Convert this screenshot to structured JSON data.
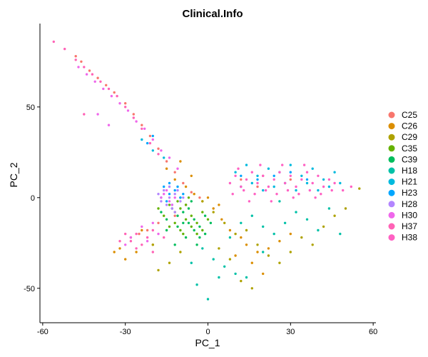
{
  "chart_data": {
    "type": "scatter",
    "title": "Clinical.Info",
    "xlabel": "PC_1",
    "ylabel": "PC_2",
    "xlim": [
      -61,
      61
    ],
    "ylim": [
      -69,
      96
    ],
    "xticks": [
      -60,
      -30,
      0,
      30,
      60
    ],
    "yticks": [
      -50,
      0,
      50
    ],
    "grid": false,
    "legend_position": "right",
    "series": [
      {
        "name": "C25",
        "color": "#F8766D",
        "points": [
          [
            -48,
            78
          ],
          [
            -46,
            75
          ],
          [
            -43,
            70
          ],
          [
            -40,
            66
          ],
          [
            -37,
            62
          ],
          [
            -34,
            58
          ],
          [
            -30,
            52
          ],
          [
            -27,
            46
          ],
          [
            -24,
            40
          ],
          [
            -21,
            34
          ],
          [
            -18,
            27
          ],
          [
            -15,
            20
          ],
          [
            -12,
            14
          ],
          [
            -9,
            8
          ],
          [
            -6,
            3
          ],
          [
            -3,
            0
          ],
          [
            -25,
            -20
          ],
          [
            -22,
            -18
          ],
          [
            -18,
            -14
          ],
          [
            -12,
            -10
          ],
          [
            -8,
            -4
          ],
          [
            12,
            10
          ],
          [
            20,
            12
          ],
          [
            30,
            10
          ],
          [
            18,
            6
          ]
        ]
      },
      {
        "name": "C26",
        "color": "#DB8E00",
        "points": [
          [
            -32,
            -28
          ],
          [
            -28,
            -22
          ],
          [
            -24,
            -18
          ],
          [
            -20,
            -26
          ],
          [
            -34,
            -30
          ],
          [
            -30,
            -34
          ],
          [
            -26,
            -30
          ],
          [
            -15,
            16
          ],
          [
            -12,
            10
          ],
          [
            -8,
            6
          ],
          [
            -5,
            2
          ],
          [
            -2,
            -2
          ],
          [
            2,
            -6
          ],
          [
            5,
            -12
          ],
          [
            8,
            -18
          ],
          [
            12,
            -22
          ],
          [
            14,
            -26
          ],
          [
            18,
            -30
          ],
          [
            22,
            -28
          ],
          [
            26,
            -24
          ],
          [
            30,
            -20
          ],
          [
            -10,
            20
          ],
          [
            -6,
            12
          ],
          [
            0,
            0
          ],
          [
            4,
            -4
          ],
          [
            16,
            -36
          ],
          [
            20,
            -42
          ],
          [
            10,
            -32
          ]
        ]
      },
      {
        "name": "C29",
        "color": "#AEA200",
        "points": [
          [
            -2,
            -2
          ],
          [
            2,
            -8
          ],
          [
            6,
            -14
          ],
          [
            10,
            -20
          ],
          [
            14,
            -18
          ],
          [
            18,
            -26
          ],
          [
            22,
            -32
          ],
          [
            26,
            -36
          ],
          [
            30,
            -30
          ],
          [
            34,
            -22
          ],
          [
            38,
            -26
          ],
          [
            42,
            -16
          ],
          [
            46,
            -10
          ],
          [
            50,
            -6
          ],
          [
            55,
            5
          ],
          [
            12,
            -46
          ],
          [
            16,
            -50
          ],
          [
            8,
            -34
          ],
          [
            -10,
            -30
          ],
          [
            -14,
            -36
          ],
          [
            -18,
            -40
          ],
          [
            -20,
            -26
          ],
          [
            4,
            -28
          ]
        ]
      },
      {
        "name": "C35",
        "color": "#64B200",
        "points": [
          [
            -14,
            -4
          ],
          [
            -12,
            -8
          ],
          [
            -10,
            -6
          ],
          [
            -8,
            -12
          ],
          [
            -6,
            -10
          ],
          [
            -4,
            -14
          ],
          [
            -2,
            -8
          ],
          [
            -16,
            -10
          ],
          [
            -12,
            -14
          ],
          [
            -10,
            -18
          ],
          [
            -8,
            -4
          ],
          [
            -6,
            -16
          ],
          [
            -4,
            -20
          ],
          [
            -14,
            -16
          ],
          [
            -18,
            -6
          ],
          [
            -2,
            -18
          ],
          [
            0,
            -12
          ],
          [
            -11,
            -2
          ],
          [
            -7,
            0
          ],
          [
            -9,
            -20
          ]
        ]
      },
      {
        "name": "C39",
        "color": "#00BD5C",
        "points": [
          [
            -13,
            -6
          ],
          [
            -11,
            -10
          ],
          [
            -9,
            -8
          ],
          [
            -7,
            -14
          ],
          [
            -5,
            -12
          ],
          [
            -3,
            -16
          ],
          [
            -1,
            -10
          ],
          [
            -15,
            -12
          ],
          [
            -11,
            -16
          ],
          [
            -9,
            -14
          ],
          [
            -7,
            -6
          ],
          [
            -5,
            -18
          ],
          [
            -3,
            -22
          ],
          [
            -15,
            -18
          ],
          [
            -17,
            -8
          ],
          [
            -1,
            -20
          ],
          [
            1,
            -14
          ],
          [
            -10,
            0
          ],
          [
            -6,
            -2
          ],
          [
            -8,
            -22
          ],
          [
            -4,
            -26
          ],
          [
            -12,
            -26
          ]
        ]
      },
      {
        "name": "H18",
        "color": "#00C1A7",
        "points": [
          [
            -2,
            -28
          ],
          [
            2,
            -34
          ],
          [
            6,
            -38
          ],
          [
            10,
            -42
          ],
          [
            14,
            -44
          ],
          [
            8,
            -22
          ],
          [
            12,
            -14
          ],
          [
            16,
            -10
          ],
          [
            20,
            -16
          ],
          [
            24,
            -20
          ],
          [
            28,
            -14
          ],
          [
            32,
            -8
          ],
          [
            36,
            -12
          ],
          [
            40,
            -18
          ],
          [
            44,
            -6
          ],
          [
            48,
            -20
          ],
          [
            4,
            -44
          ],
          [
            -6,
            -36
          ],
          [
            -4,
            -48
          ],
          [
            0,
            -56
          ],
          [
            20,
            -30
          ],
          [
            26,
            -2
          ]
        ]
      },
      {
        "name": "H21",
        "color": "#00BADE",
        "points": [
          [
            10,
            14
          ],
          [
            14,
            18
          ],
          [
            18,
            12
          ],
          [
            22,
            16
          ],
          [
            26,
            14
          ],
          [
            30,
            18
          ],
          [
            34,
            12
          ],
          [
            38,
            16
          ],
          [
            42,
            10
          ],
          [
            46,
            14
          ],
          [
            12,
            6
          ],
          [
            16,
            8
          ],
          [
            20,
            4
          ],
          [
            24,
            6
          ],
          [
            28,
            8
          ],
          [
            32,
            4
          ],
          [
            36,
            8
          ],
          [
            40,
            4
          ],
          [
            44,
            6
          ],
          [
            48,
            8
          ],
          [
            -20,
            26
          ],
          [
            -16,
            22
          ],
          [
            -24,
            32
          ]
        ]
      },
      {
        "name": "H23",
        "color": "#00A6FF",
        "points": [
          [
            -16,
            6
          ],
          [
            -14,
            2
          ],
          [
            -12,
            4
          ],
          [
            -10,
            0
          ],
          [
            -15,
            -2
          ],
          [
            -13,
            -4
          ],
          [
            -11,
            6
          ],
          [
            -17,
            0
          ],
          [
            -9,
            2
          ],
          [
            -14,
            8
          ],
          [
            12,
            12
          ],
          [
            18,
            10
          ],
          [
            24,
            12
          ],
          [
            30,
            14
          ],
          [
            36,
            10
          ],
          [
            -22,
            30
          ],
          [
            -20,
            34
          ]
        ]
      },
      {
        "name": "H28",
        "color": "#B385FF",
        "points": [
          [
            -16,
            4
          ],
          [
            -14,
            0
          ],
          [
            -12,
            2
          ],
          [
            -10,
            -2
          ],
          [
            -15,
            -4
          ],
          [
            -13,
            -6
          ],
          [
            -11,
            4
          ],
          [
            -17,
            -2
          ],
          [
            -9,
            0
          ],
          [
            -14,
            6
          ],
          [
            -18,
            2
          ],
          [
            -12,
            -8
          ]
        ]
      },
      {
        "name": "H30",
        "color": "#EF67EB",
        "points": [
          [
            -47,
            72
          ],
          [
            -44,
            68
          ],
          [
            -41,
            64
          ],
          [
            -38,
            60
          ],
          [
            -35,
            56
          ],
          [
            -32,
            52
          ],
          [
            -29,
            48
          ],
          [
            -26,
            42
          ],
          [
            -23,
            38
          ],
          [
            -20,
            32
          ],
          [
            -17,
            26
          ],
          [
            -14,
            22
          ],
          [
            -11,
            16
          ],
          [
            -16,
            2
          ],
          [
            -14,
            -2
          ],
          [
            -12,
            0
          ],
          [
            -15,
            4
          ],
          [
            -13,
            -4
          ],
          [
            -17,
            0
          ],
          [
            -20,
            -14
          ],
          [
            -24,
            -16
          ],
          [
            -28,
            -22
          ],
          [
            -30,
            -26
          ],
          [
            -22,
            -24
          ],
          [
            -18,
            -20
          ],
          [
            -40,
            46
          ],
          [
            -36,
            40
          ]
        ]
      },
      {
        "name": "H37",
        "color": "#FF63B6",
        "points": [
          [
            -56,
            86
          ],
          [
            -52,
            82
          ],
          [
            -48,
            76
          ],
          [
            -45,
            72
          ],
          [
            -42,
            68
          ],
          [
            -39,
            64
          ],
          [
            -36,
            60
          ],
          [
            -33,
            56
          ],
          [
            -30,
            50
          ],
          [
            -27,
            44
          ],
          [
            -24,
            38
          ],
          [
            -21,
            30
          ],
          [
            -18,
            24
          ],
          [
            -26,
            -20
          ],
          [
            -22,
            -22
          ],
          [
            -28,
            -24
          ],
          [
            -24,
            -26
          ],
          [
            -20,
            -18
          ],
          [
            -30,
            -20
          ],
          [
            -32,
            -24
          ],
          [
            -26,
            -28
          ],
          [
            -20,
            -30
          ],
          [
            -16,
            -22
          ],
          [
            -45,
            46
          ]
        ]
      },
      {
        "name": "H38",
        "color": "#FF61C3",
        "points": [
          [
            8,
            8
          ],
          [
            10,
            12
          ],
          [
            12,
            6
          ],
          [
            14,
            10
          ],
          [
            16,
            14
          ],
          [
            18,
            8
          ],
          [
            20,
            12
          ],
          [
            22,
            6
          ],
          [
            24,
            10
          ],
          [
            26,
            14
          ],
          [
            28,
            8
          ],
          [
            30,
            12
          ],
          [
            32,
            6
          ],
          [
            34,
            10
          ],
          [
            36,
            14
          ],
          [
            38,
            8
          ],
          [
            40,
            12
          ],
          [
            42,
            6
          ],
          [
            44,
            10
          ],
          [
            46,
            8
          ],
          [
            9,
            2
          ],
          [
            13,
            4
          ],
          [
            17,
            2
          ],
          [
            21,
            4
          ],
          [
            25,
            2
          ],
          [
            29,
            4
          ],
          [
            33,
            2
          ],
          [
            37,
            4
          ],
          [
            41,
            2
          ],
          [
            45,
            4
          ],
          [
            11,
            16
          ],
          [
            19,
            18
          ],
          [
            27,
            18
          ],
          [
            35,
            18
          ],
          [
            15,
            -2
          ],
          [
            23,
            -2
          ],
          [
            31,
            0
          ],
          [
            39,
            0
          ],
          [
            52,
            6
          ],
          [
            49,
            4
          ]
        ]
      }
    ]
  }
}
